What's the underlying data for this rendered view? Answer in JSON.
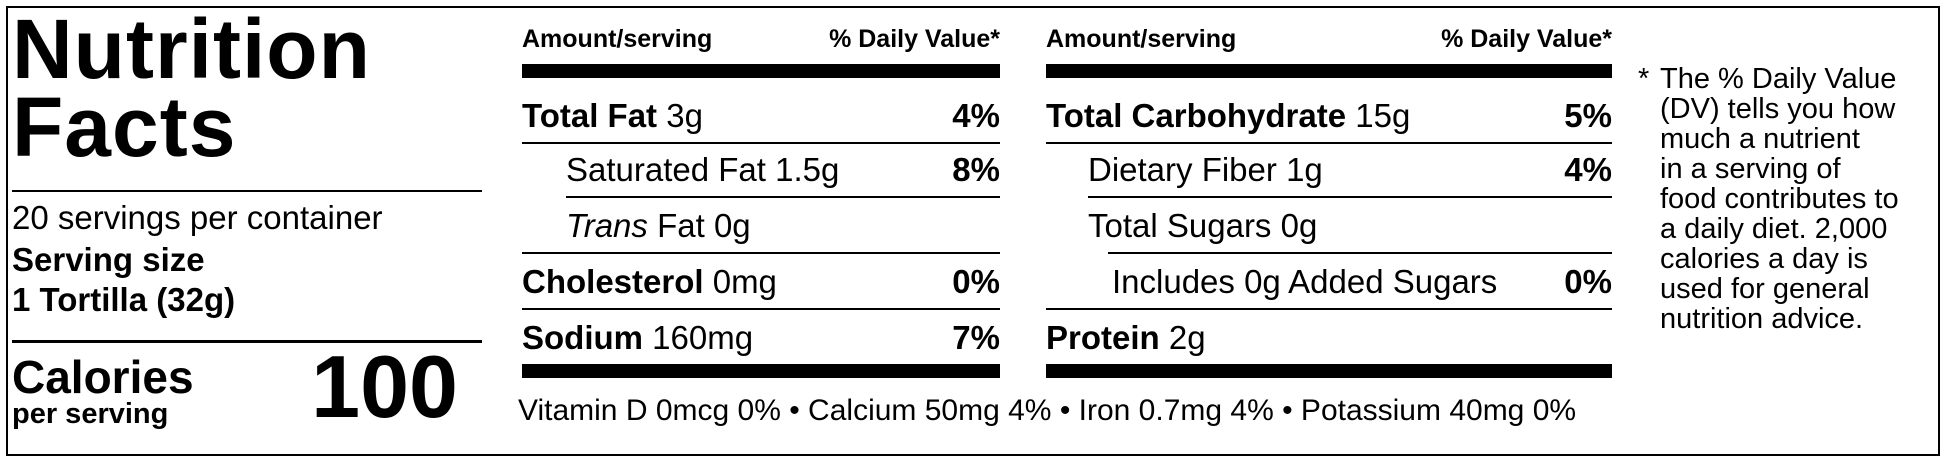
{
  "title": {
    "line1": "Nutrition",
    "line2": "Facts"
  },
  "servings": "20 servings per container",
  "serving_size": {
    "label": "Serving size",
    "value": "1 Tortilla (32g)"
  },
  "calories": {
    "label": "Calories",
    "sub": "per serving",
    "value": "100"
  },
  "left_table": {
    "header_amount": "Amount/serving",
    "header_dv": "% Daily Value*",
    "rows": [
      {
        "name": "Total Fat",
        "amount": "3g",
        "pct": "4%"
      },
      {
        "name": "Saturated Fat",
        "amount": "1.5g",
        "pct": "8%"
      },
      {
        "name_italic": "Trans",
        "name": "Fat",
        "amount": "0g",
        "pct": ""
      },
      {
        "name": "Cholesterol",
        "amount": "0mg",
        "pct": "0%"
      },
      {
        "name": "Sodium",
        "amount": "160mg",
        "pct": "7%"
      }
    ]
  },
  "right_table": {
    "header_amount": "Amount/serving",
    "header_dv": "% Daily Value*",
    "rows": [
      {
        "name": "Total Carbohydrate",
        "amount": "15g",
        "pct": "5%"
      },
      {
        "name": "Dietary Fiber",
        "amount": "1g",
        "pct": "4%"
      },
      {
        "name": "Total Sugars",
        "amount": "0g",
        "pct": ""
      },
      {
        "name": "Includes 0g Added Sugars",
        "amount": "",
        "pct": "0%"
      },
      {
        "name": "Protein",
        "amount": "2g",
        "pct": ""
      }
    ]
  },
  "vitamins": "Vitamin D 0mcg 0%  •  Calcium 50mg 4%  •  Iron 0.7mg 4%  •  Potassium 40mg 0%",
  "footnote": {
    "star": "*",
    "lines": [
      "The % Daily Value",
      "(DV) tells you how",
      "much a nutrient",
      "in a serving of",
      "food contributes to",
      "a daily diet. 2,000",
      "calories a day is",
      "used for general",
      "nutrition advice."
    ]
  }
}
